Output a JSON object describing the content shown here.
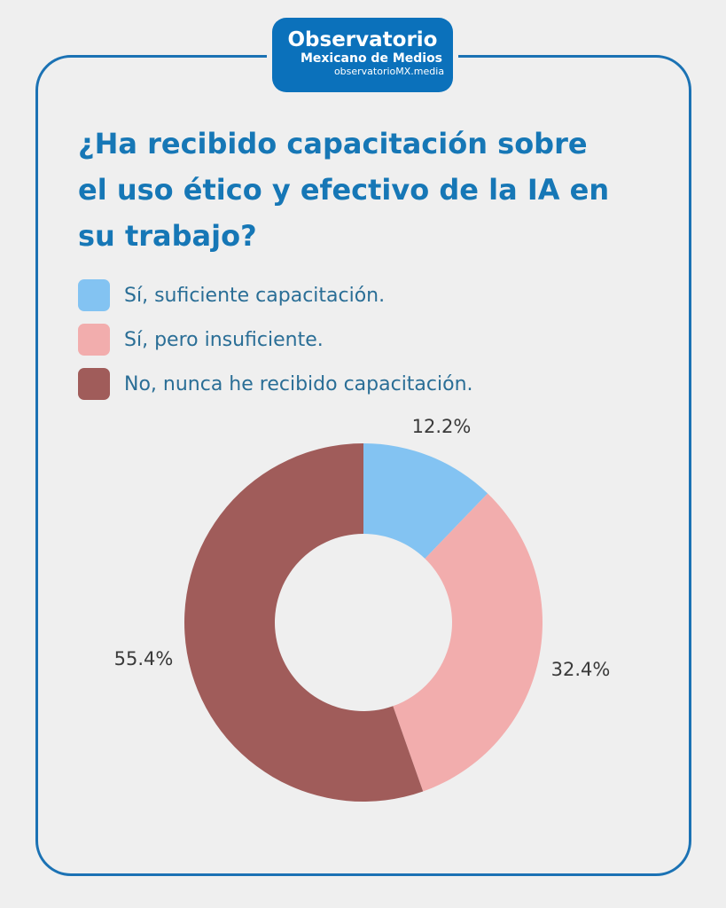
{
  "logo": {
    "line1": "Observatorio",
    "line2": "Mexicano de Medios",
    "line3": "observatorioMX.media"
  },
  "chart_data": {
    "type": "pie",
    "title": "¿Ha recibido capacitación sobre el uso ético y efectivo de la IA en su trabajo?",
    "categories": [
      "Sí, suficiente capacitación.",
      "Sí, pero insuficiente.",
      "No, nunca he recibido capacitación."
    ],
    "values": [
      12.2,
      32.4,
      55.4
    ],
    "labels": [
      "12.2%",
      "32.4%",
      "55.4%"
    ],
    "colors": [
      "#83c3f2",
      "#f2adad",
      "#a05c5a"
    ],
    "donut": true,
    "legend": "top-left"
  }
}
